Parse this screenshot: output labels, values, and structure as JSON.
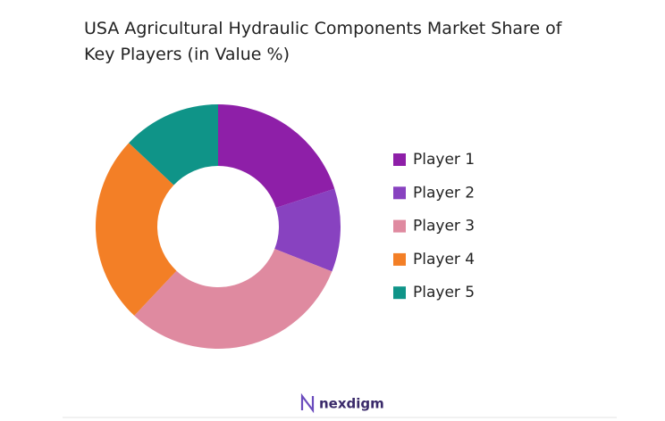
{
  "chart_data": {
    "type": "donut",
    "title": "USA Agricultural Hydraulic Components Market Share of Key Players (in Value %)",
    "categories": [
      "Player 1",
      "Player 2",
      "Player 3",
      "Player 4",
      "Player 5"
    ],
    "values": [
      20,
      11,
      31,
      25,
      13
    ],
    "colors": [
      "#8e1fa8",
      "#8842c0",
      "#df8aa0",
      "#f37f26",
      "#0f9488"
    ],
    "legend": "right"
  },
  "footer": {
    "brand": "nexdigm"
  }
}
